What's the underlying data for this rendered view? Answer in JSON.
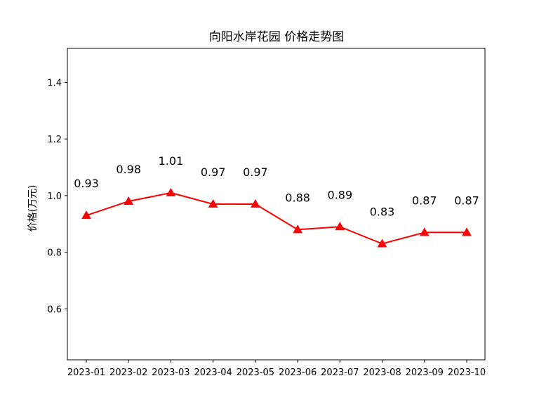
{
  "chart_data": {
    "type": "line",
    "title": "向阳水岸花园 价格走势图",
    "xlabel": "",
    "ylabel": "价格(万元)",
    "categories": [
      "2023-01",
      "2023-02",
      "2023-03",
      "2023-04",
      "2023-05",
      "2023-06",
      "2023-07",
      "2023-08",
      "2023-09",
      "2023-10"
    ],
    "series": [
      {
        "values": [
          0.93,
          0.98,
          1.01,
          0.97,
          0.97,
          0.88,
          0.89,
          0.83,
          0.87,
          0.87
        ],
        "labels": [
          "0.93",
          "0.98",
          "1.01",
          "0.97",
          "0.97",
          "0.88",
          "0.89",
          "0.83",
          "0.87",
          "0.87"
        ],
        "color": "#ff0000",
        "marker": "triangle-up"
      }
    ],
    "yticks": [
      0.6,
      0.8,
      1.0,
      1.2,
      1.4
    ],
    "ytick_labels": [
      "0.6",
      "0.8",
      "1.0",
      "1.2",
      "1.4"
    ],
    "ylim": [
      0.42,
      1.52
    ],
    "grid": false,
    "legend": "none"
  }
}
